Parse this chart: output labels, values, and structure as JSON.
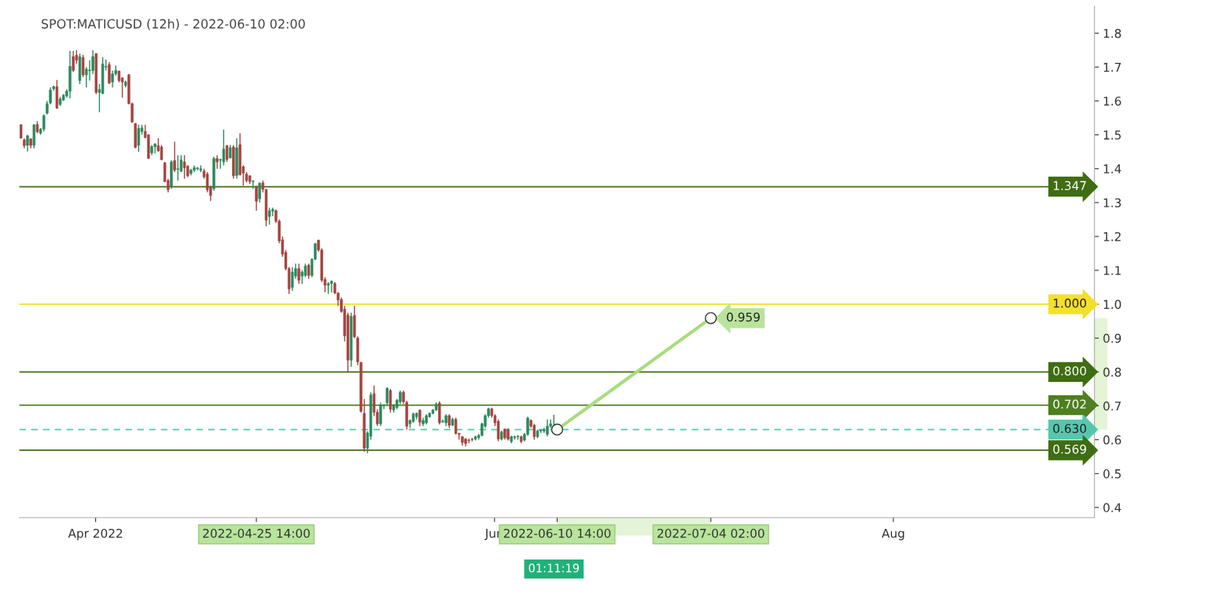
{
  "chart_data": {
    "type": "candlestick",
    "title": "SPOT:MATICUSD (12h) - 2022-06-10 02:00",
    "x": [
      "2022-03-20T14:00",
      "2022-03-21T02:00",
      "2022-03-21T14:00",
      "2022-03-22T02:00",
      "2022-03-22T14:00",
      "2022-03-23T02:00",
      "2022-03-23T14:00",
      "2022-03-24T02:00",
      "2022-03-24T14:00",
      "2022-03-25T02:00",
      "2022-03-25T14:00",
      "2022-03-26T02:00",
      "2022-03-26T14:00",
      "2022-03-27T02:00",
      "2022-03-27T14:00",
      "2022-03-28T02:00",
      "2022-03-28T14:00",
      "2022-03-29T02:00",
      "2022-03-29T14:00",
      "2022-03-30T02:00",
      "2022-03-30T14:00",
      "2022-03-31T02:00",
      "2022-03-31T14:00",
      "2022-04-01T02:00",
      "2022-04-01T14:00",
      "2022-04-02T02:00",
      "2022-04-02T14:00",
      "2022-04-03T02:00",
      "2022-04-03T14:00",
      "2022-04-04T02:00",
      "2022-04-04T14:00",
      "2022-04-05T02:00",
      "2022-04-05T14:00",
      "2022-04-06T02:00",
      "2022-04-06T14:00",
      "2022-04-07T02:00",
      "2022-04-07T14:00",
      "2022-04-08T02:00",
      "2022-04-08T14:00",
      "2022-04-09T02:00",
      "2022-04-09T14:00",
      "2022-04-10T02:00",
      "2022-04-10T14:00",
      "2022-04-11T02:00",
      "2022-04-11T14:00",
      "2022-04-12T02:00",
      "2022-04-12T14:00",
      "2022-04-13T02:00",
      "2022-04-13T14:00",
      "2022-04-14T02:00",
      "2022-04-14T14:00",
      "2022-04-15T02:00",
      "2022-04-15T14:00",
      "2022-04-16T02:00",
      "2022-04-16T14:00",
      "2022-04-17T02:00",
      "2022-04-17T14:00",
      "2022-04-18T02:00",
      "2022-04-18T14:00",
      "2022-04-19T02:00",
      "2022-04-19T14:00",
      "2022-04-20T02:00",
      "2022-04-20T14:00",
      "2022-04-21T02:00",
      "2022-04-21T14:00",
      "2022-04-22T02:00",
      "2022-04-22T14:00",
      "2022-04-23T02:00",
      "2022-04-23T14:00",
      "2022-04-24T02:00",
      "2022-04-24T14:00",
      "2022-04-25T02:00",
      "2022-04-25T14:00",
      "2022-04-26T02:00",
      "2022-04-26T14:00",
      "2022-04-27T02:00",
      "2022-04-27T14:00",
      "2022-04-28T02:00",
      "2022-04-28T14:00",
      "2022-04-29T02:00",
      "2022-04-29T14:00",
      "2022-04-30T02:00",
      "2022-04-30T14:00",
      "2022-05-01T02:00",
      "2022-05-01T14:00",
      "2022-05-02T02:00",
      "2022-05-02T14:00",
      "2022-05-03T02:00",
      "2022-05-03T14:00",
      "2022-05-04T02:00",
      "2022-05-04T14:00",
      "2022-05-05T02:00",
      "2022-05-05T14:00",
      "2022-05-06T02:00",
      "2022-05-06T14:00",
      "2022-05-07T02:00",
      "2022-05-07T14:00",
      "2022-05-08T02:00",
      "2022-05-08T14:00",
      "2022-05-09T02:00",
      "2022-05-09T14:00",
      "2022-05-10T02:00",
      "2022-05-10T14:00",
      "2022-05-11T02:00",
      "2022-05-11T14:00",
      "2022-05-12T02:00",
      "2022-05-12T14:00",
      "2022-05-13T02:00",
      "2022-05-13T14:00",
      "2022-05-14T02:00",
      "2022-05-14T14:00",
      "2022-05-15T02:00",
      "2022-05-15T14:00",
      "2022-05-16T02:00",
      "2022-05-16T14:00",
      "2022-05-17T02:00",
      "2022-05-17T14:00",
      "2022-05-18T02:00",
      "2022-05-18T14:00",
      "2022-05-19T02:00",
      "2022-05-19T14:00",
      "2022-05-20T02:00",
      "2022-05-20T14:00",
      "2022-05-21T02:00",
      "2022-05-21T14:00",
      "2022-05-22T02:00",
      "2022-05-22T14:00",
      "2022-05-23T02:00",
      "2022-05-23T14:00",
      "2022-05-24T02:00",
      "2022-05-24T14:00",
      "2022-05-25T02:00",
      "2022-05-25T14:00",
      "2022-05-26T02:00",
      "2022-05-26T14:00",
      "2022-05-27T02:00",
      "2022-05-27T14:00",
      "2022-05-28T02:00",
      "2022-05-28T14:00",
      "2022-05-29T02:00",
      "2022-05-29T14:00",
      "2022-05-30T02:00",
      "2022-05-30T14:00",
      "2022-05-31T02:00",
      "2022-05-31T14:00",
      "2022-06-01T02:00",
      "2022-06-01T14:00",
      "2022-06-02T02:00",
      "2022-06-02T14:00",
      "2022-06-03T02:00",
      "2022-06-03T14:00",
      "2022-06-04T02:00",
      "2022-06-04T14:00",
      "2022-06-05T02:00",
      "2022-06-05T14:00",
      "2022-06-06T02:00",
      "2022-06-06T14:00",
      "2022-06-07T02:00",
      "2022-06-07T14:00",
      "2022-06-08T02:00",
      "2022-06-08T14:00",
      "2022-06-09T02:00",
      "2022-06-09T14:00",
      "2022-06-10T02:00"
    ],
    "ohlc": [
      [
        1.53,
        1.53,
        1.49,
        1.49
      ],
      [
        1.485,
        1.49,
        1.46,
        1.468
      ],
      [
        1.469,
        1.5,
        1.451,
        1.497
      ],
      [
        1.488,
        1.49,
        1.46,
        1.469
      ],
      [
        1.469,
        1.53,
        1.46,
        1.53
      ],
      [
        1.531,
        1.54,
        1.505,
        1.509
      ],
      [
        1.505,
        1.52,
        1.5,
        1.517
      ],
      [
        1.517,
        1.56,
        1.51,
        1.557
      ],
      [
        1.564,
        1.6,
        1.56,
        1.592
      ],
      [
        1.594,
        1.64,
        1.59,
        1.632
      ],
      [
        1.636,
        1.645,
        1.63,
        1.642
      ],
      [
        1.642,
        1.662,
        1.577,
        1.579
      ],
      [
        1.59,
        1.612,
        1.585,
        1.606
      ],
      [
        1.603,
        1.62,
        1.6,
        1.617
      ],
      [
        1.615,
        1.635,
        1.61,
        1.629
      ],
      [
        1.629,
        1.748,
        1.608,
        1.702
      ],
      [
        1.731,
        1.748,
        1.685,
        1.69
      ],
      [
        1.735,
        1.75,
        1.71,
        1.72
      ],
      [
        1.66,
        1.74,
        1.65,
        1.731
      ],
      [
        1.728,
        1.736,
        1.67,
        1.677
      ],
      [
        1.677,
        1.7,
        1.64,
        1.694
      ],
      [
        1.689,
        1.72,
        1.66,
        1.689
      ],
      [
        1.69,
        1.75,
        1.68,
        1.731
      ],
      [
        1.74,
        1.74,
        1.62,
        1.625
      ],
      [
        1.625,
        1.65,
        1.567,
        1.634
      ],
      [
        1.622,
        1.73,
        1.62,
        1.709
      ],
      [
        1.7,
        1.722,
        1.69,
        1.7
      ],
      [
        1.707,
        1.715,
        1.65,
        1.653
      ],
      [
        1.656,
        1.69,
        1.64,
        1.68
      ],
      [
        1.68,
        1.705,
        1.675,
        1.69
      ],
      [
        1.688,
        1.69,
        1.655,
        1.66
      ],
      [
        1.668,
        1.67,
        1.61,
        1.656
      ],
      [
        1.646,
        1.66,
        1.64,
        1.656
      ],
      [
        1.677,
        1.68,
        1.59,
        1.592
      ],
      [
        1.592,
        1.595,
        1.535,
        1.538
      ],
      [
        1.533,
        1.535,
        1.46,
        1.463
      ],
      [
        1.469,
        1.53,
        1.45,
        1.519
      ],
      [
        1.51,
        1.53,
        1.5,
        1.52
      ],
      [
        1.51,
        1.53,
        1.49,
        1.492
      ],
      [
        1.5,
        1.5,
        1.43,
        1.43
      ],
      [
        1.447,
        1.47,
        1.44,
        1.465
      ],
      [
        1.465,
        1.475,
        1.445,
        1.473
      ],
      [
        1.468,
        1.49,
        1.45,
        1.453
      ],
      [
        1.464,
        1.47,
        1.425,
        1.427
      ],
      [
        1.417,
        1.42,
        1.36,
        1.362
      ],
      [
        1.365,
        1.37,
        1.33,
        1.338
      ],
      [
        1.348,
        1.425,
        1.34,
        1.42
      ],
      [
        1.424,
        1.48,
        1.39,
        1.396
      ],
      [
        1.398,
        1.44,
        1.365,
        1.398
      ],
      [
        1.393,
        1.44,
        1.39,
        1.426
      ],
      [
        1.42,
        1.44,
        1.37,
        1.403
      ],
      [
        1.408,
        1.41,
        1.375,
        1.379
      ],
      [
        1.386,
        1.4,
        1.38,
        1.396
      ],
      [
        1.396,
        1.41,
        1.39,
        1.403
      ],
      [
        1.4,
        1.405,
        1.395,
        1.4
      ],
      [
        1.396,
        1.41,
        1.39,
        1.4
      ],
      [
        1.393,
        1.4,
        1.37,
        1.376
      ],
      [
        1.384,
        1.39,
        1.33,
        1.338
      ],
      [
        1.345,
        1.35,
        1.305,
        1.321
      ],
      [
        1.341,
        1.435,
        1.335,
        1.43
      ],
      [
        1.43,
        1.44,
        1.4,
        1.42
      ],
      [
        1.425,
        1.43,
        1.4,
        1.425
      ],
      [
        1.42,
        1.515,
        1.41,
        1.458
      ],
      [
        1.468,
        1.47,
        1.42,
        1.427
      ],
      [
        1.432,
        1.47,
        1.43,
        1.462
      ],
      [
        1.464,
        1.47,
        1.37,
        1.379
      ],
      [
        1.38,
        1.49,
        1.37,
        1.462
      ],
      [
        1.471,
        1.505,
        1.38,
        1.382
      ],
      [
        1.406,
        1.41,
        1.35,
        1.387
      ],
      [
        1.384,
        1.39,
        1.36,
        1.365
      ],
      [
        1.379,
        1.38,
        1.355,
        1.362
      ],
      [
        1.362,
        1.365,
        1.34,
        1.362
      ],
      [
        1.345,
        1.35,
        1.276,
        1.304
      ],
      [
        1.311,
        1.36,
        1.3,
        1.357
      ],
      [
        1.358,
        1.365,
        1.33,
        1.339
      ],
      [
        1.339,
        1.34,
        1.23,
        1.248
      ],
      [
        1.259,
        1.285,
        1.235,
        1.276
      ],
      [
        1.275,
        1.285,
        1.26,
        1.28
      ],
      [
        1.276,
        1.28,
        1.24,
        1.245
      ],
      [
        1.245,
        1.25,
        1.18,
        1.187
      ],
      [
        1.19,
        1.2,
        1.14,
        1.148
      ],
      [
        1.153,
        1.16,
        1.1,
        1.105
      ],
      [
        1.105,
        1.11,
        1.03,
        1.045
      ],
      [
        1.05,
        1.11,
        1.04,
        1.095
      ],
      [
        1.083,
        1.12,
        1.075,
        1.105
      ],
      [
        1.105,
        1.12,
        1.06,
        1.071
      ],
      [
        1.083,
        1.1,
        1.06,
        1.095
      ],
      [
        1.085,
        1.12,
        1.08,
        1.113
      ],
      [
        1.115,
        1.12,
        1.075,
        1.085
      ],
      [
        1.085,
        1.135,
        1.08,
        1.133
      ],
      [
        1.133,
        1.18,
        1.13,
        1.179
      ],
      [
        1.189,
        1.19,
        1.155,
        1.16
      ],
      [
        1.16,
        1.165,
        1.065,
        1.071
      ],
      [
        1.073,
        1.08,
        1.035,
        1.056
      ],
      [
        1.056,
        1.065,
        1.03,
        1.061
      ],
      [
        1.061,
        1.07,
        1.035,
        1.068
      ],
      [
        1.061,
        1.065,
        1.03,
        1.033
      ],
      [
        1.033,
        1.035,
        0.995,
        1.013
      ],
      [
        1.014,
        1.02,
        0.975,
        0.979
      ],
      [
        0.985,
        0.995,
        0.89,
        0.907
      ],
      [
        0.968,
        0.975,
        0.8,
        0.835
      ],
      [
        0.835,
        0.975,
        0.815,
        0.964
      ],
      [
        0.967,
        0.995,
        0.9,
        0.904
      ],
      [
        0.9,
        0.905,
        0.82,
        0.83
      ],
      [
        0.828,
        0.83,
        0.68,
        0.684
      ],
      [
        0.678,
        0.72,
        0.565,
        0.575
      ],
      [
        0.575,
        0.625,
        0.56,
        0.62
      ],
      [
        0.61,
        0.74,
        0.6,
        0.732
      ],
      [
        0.736,
        0.76,
        0.67,
        0.681
      ],
      [
        0.681,
        0.69,
        0.64,
        0.647
      ],
      [
        0.647,
        0.71,
        0.64,
        0.702
      ],
      [
        0.7,
        0.705,
        0.69,
        0.7
      ],
      [
        0.709,
        0.755,
        0.7,
        0.752
      ],
      [
        0.745,
        0.75,
        0.68,
        0.69
      ],
      [
        0.688,
        0.705,
        0.68,
        0.702
      ],
      [
        0.695,
        0.72,
        0.69,
        0.717
      ],
      [
        0.712,
        0.745,
        0.705,
        0.74
      ],
      [
        0.74,
        0.745,
        0.705,
        0.712
      ],
      [
        0.71,
        0.715,
        0.63,
        0.64
      ],
      [
        0.647,
        0.66,
        0.635,
        0.657
      ],
      [
        0.654,
        0.68,
        0.65,
        0.676
      ],
      [
        0.668,
        0.68,
        0.66,
        0.678
      ],
      [
        0.687,
        0.69,
        0.64,
        0.652
      ],
      [
        0.647,
        0.665,
        0.64,
        0.657
      ],
      [
        0.65,
        0.675,
        0.645,
        0.671
      ],
      [
        0.668,
        0.68,
        0.665,
        0.678
      ],
      [
        0.678,
        0.69,
        0.675,
        0.688
      ],
      [
        0.688,
        0.71,
        0.685,
        0.705
      ],
      [
        0.708,
        0.713,
        0.645,
        0.65
      ],
      [
        0.653,
        0.66,
        0.65,
        0.653
      ],
      [
        0.65,
        0.675,
        0.64,
        0.671
      ],
      [
        0.671,
        0.675,
        0.635,
        0.643
      ],
      [
        0.643,
        0.665,
        0.64,
        0.66
      ],
      [
        0.66,
        0.665,
        0.615,
        0.619
      ],
      [
        0.619,
        0.62,
        0.6,
        0.616
      ],
      [
        0.609,
        0.61,
        0.582,
        0.592
      ],
      [
        0.602,
        0.605,
        0.58,
        0.589
      ],
      [
        0.599,
        0.603,
        0.59,
        0.598
      ],
      [
        0.602,
        0.605,
        0.595,
        0.601
      ],
      [
        0.602,
        0.612,
        0.598,
        0.609
      ],
      [
        0.606,
        0.617,
        0.6,
        0.613
      ],
      [
        0.613,
        0.65,
        0.61,
        0.647
      ],
      [
        0.64,
        0.675,
        0.635,
        0.671
      ],
      [
        0.671,
        0.695,
        0.665,
        0.691
      ],
      [
        0.691,
        0.695,
        0.665,
        0.671
      ],
      [
        0.671,
        0.675,
        0.64,
        0.65
      ],
      [
        0.654,
        0.66,
        0.595,
        0.602
      ],
      [
        0.602,
        0.627,
        0.598,
        0.623
      ],
      [
        0.63,
        0.633,
        0.6,
        0.606
      ],
      [
        0.63,
        0.633,
        0.598,
        0.602
      ],
      [
        0.595,
        0.612,
        0.59,
        0.609
      ],
      [
        0.606,
        0.612,
        0.6,
        0.609
      ],
      [
        0.609,
        0.613,
        0.6,
        0.609
      ],
      [
        0.609,
        0.612,
        0.59,
        0.595
      ],
      [
        0.599,
        0.62,
        0.595,
        0.616
      ],
      [
        0.616,
        0.668,
        0.612,
        0.664
      ],
      [
        0.657,
        0.66,
        0.635,
        0.64
      ],
      [
        0.643,
        0.647,
        0.6,
        0.609
      ],
      [
        0.609,
        0.63,
        0.605,
        0.626
      ],
      [
        0.626,
        0.63,
        0.62,
        0.626
      ],
      [
        0.626,
        0.635,
        0.62,
        0.63
      ],
      [
        0.616,
        0.66,
        0.61,
        0.64
      ],
      [
        0.64,
        0.66,
        0.635,
        0.647
      ],
      [
        0.625,
        0.674,
        0.62,
        0.63
      ]
    ],
    "series": [
      {
        "type": "line",
        "color": "#a8dc7e",
        "x": [
          "2022-06-10T14:00",
          "2022-07-04T02:00"
        ],
        "values": [
          0.63,
          0.959
        ]
      }
    ],
    "marker": "circle",
    "xlim": [
      "2022-03-20T08:00",
      "2022-08-31T18:00"
    ],
    "xticks": [
      {
        "value": "2022-04-01",
        "label": "Apr 2022"
      },
      {
        "value": "2022-04-25T14:00",
        "label": "2022-04-25 14:00"
      },
      {
        "value": "2022-06-01",
        "label": "Jun"
      },
      {
        "value": "2022-06-10T14:00",
        "label": "2022-06-10 14:00"
      },
      {
        "value": "2022-07-04T02:00",
        "label": "2022-07-04 02:00"
      },
      {
        "value": "2022-08-01",
        "label": "Aug"
      }
    ],
    "ylim": [
      0.37,
      1.88
    ],
    "yticks": [
      0.4,
      0.5,
      0.6,
      0.7,
      0.8,
      0.9,
      {
        "value": 1.0,
        "label": "1.0"
      },
      1.1,
      1.2,
      1.3,
      1.4,
      1.5,
      1.6,
      1.7,
      1.8
    ],
    "grid": false,
    "ref_lines": [
      {
        "axis": "y",
        "value": 1.347,
        "label": "1.347",
        "color": "#3f6d12",
        "line_style": "solid"
      },
      {
        "axis": "y",
        "value": 1.0,
        "label": "1.000",
        "color": "#f2e02a",
        "line_style": "solid"
      },
      {
        "axis": "y",
        "value": 0.8,
        "label": "0.800",
        "color": "#3f6d12",
        "line_style": "solid"
      },
      {
        "axis": "y",
        "value": 0.702,
        "label": "0.702",
        "color": "#4f7f1f",
        "line_style": "solid"
      },
      {
        "axis": "y",
        "value": 0.63,
        "label": "0.630",
        "color": "#55c7ad",
        "line_style": "dashed"
      },
      {
        "axis": "y",
        "value": 0.569,
        "label": "0.569",
        "color": "#3f6d12",
        "line_style": "solid"
      }
    ],
    "annotations": [
      {
        "text": "0.959",
        "x": "2022-07-04T02:00",
        "y": 0.959
      },
      "01:11:19"
    ]
  }
}
